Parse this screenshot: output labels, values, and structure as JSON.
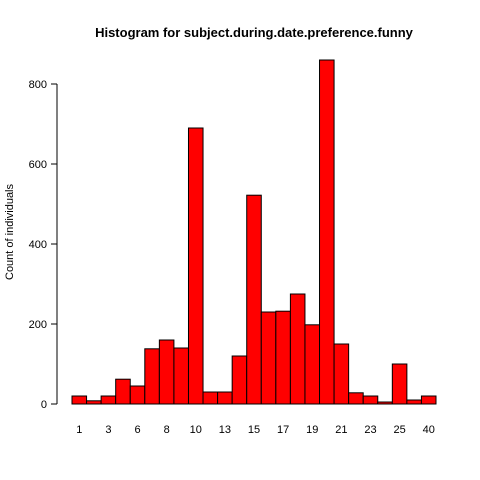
{
  "chart_data": {
    "type": "bar",
    "title": "Histogram for subject.during.date.preference.funny",
    "xlabel": "",
    "ylabel": "Count of individuals",
    "ylim": [
      0,
      900
    ],
    "y_ticks": [
      0,
      200,
      400,
      600,
      800
    ],
    "bar_color": "#ff0000",
    "grid": false,
    "legend": "none",
    "x_tick_labels": [
      {
        "bar_index": 0,
        "label": "1"
      },
      {
        "bar_index": 2,
        "label": "3"
      },
      {
        "bar_index": 4,
        "label": "6"
      },
      {
        "bar_index": 6,
        "label": "8"
      },
      {
        "bar_index": 8,
        "label": "10"
      },
      {
        "bar_index": 10,
        "label": "13"
      },
      {
        "bar_index": 12,
        "label": "15"
      },
      {
        "bar_index": 14,
        "label": "17"
      },
      {
        "bar_index": 16,
        "label": "19"
      },
      {
        "bar_index": 18,
        "label": "21"
      },
      {
        "bar_index": 20,
        "label": "23"
      },
      {
        "bar_index": 22,
        "label": "25"
      },
      {
        "bar_index": 24,
        "label": "40"
      }
    ],
    "values": [
      20,
      8,
      20,
      62,
      45,
      138,
      160,
      140,
      690,
      30,
      30,
      120,
      522,
      230,
      232,
      275,
      198,
      860,
      150,
      28,
      20,
      5,
      100,
      10,
      20
    ]
  }
}
